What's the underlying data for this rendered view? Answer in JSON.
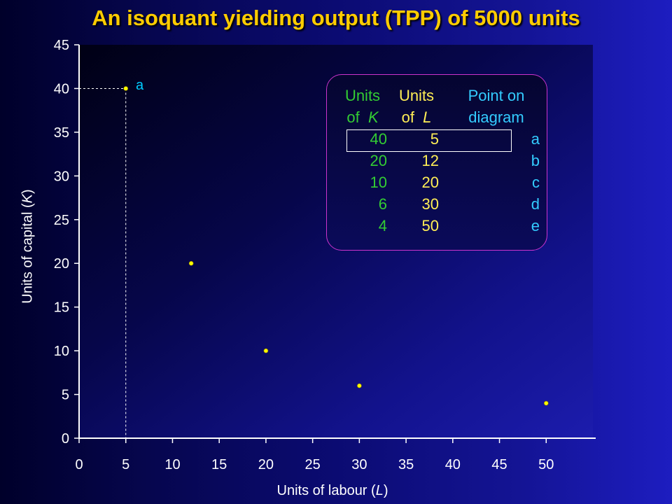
{
  "title": "An isoquant yielding output (TPP) of 5000 units",
  "chart_data": {
    "type": "scatter",
    "title": "An isoquant yielding output (TPP) of 5000 units",
    "xlabel_prefix": "Units of labour (",
    "xlabel_var": "L",
    "xlabel_suffix": ")",
    "ylabel_prefix": "Units of capital (",
    "ylabel_var": "K",
    "ylabel_suffix": ")",
    "xlim": [
      0,
      55
    ],
    "ylim": [
      0,
      45
    ],
    "xticks": [
      0,
      5,
      10,
      15,
      20,
      25,
      30,
      35,
      40,
      45,
      50
    ],
    "yticks": [
      0,
      5,
      10,
      15,
      20,
      25,
      30,
      35,
      40,
      45
    ],
    "points": [
      {
        "x": 5,
        "y": 40,
        "label": "a"
      },
      {
        "x": 12,
        "y": 20,
        "label": "b"
      },
      {
        "x": 20,
        "y": 10,
        "label": "c"
      },
      {
        "x": 30,
        "y": 6,
        "label": "d"
      },
      {
        "x": 50,
        "y": 4,
        "label": "e"
      }
    ],
    "annotated_point_label": "a",
    "guide_lines": {
      "x": 5,
      "y": 40
    },
    "point_color": "#ffff00",
    "guide_color": "#ffffff"
  },
  "table": {
    "headers": [
      {
        "line1": "Units",
        "line2": "of",
        "var": "K"
      },
      {
        "line1": "Units",
        "line2": "of",
        "var": "L"
      },
      {
        "line1": "Point on",
        "line2": "diagram",
        "var": ""
      }
    ],
    "rows": [
      {
        "k": "40",
        "l": "5",
        "p": "a"
      },
      {
        "k": "20",
        "l": "12",
        "p": "b"
      },
      {
        "k": "10",
        "l": "20",
        "p": "c"
      },
      {
        "k": "6",
        "l": "30",
        "p": "d"
      },
      {
        "k": "4",
        "l": "50",
        "p": "e"
      }
    ],
    "highlighted_row": 0,
    "colors": {
      "k": "#33cc33",
      "l": "#ffee55",
      "p": "#33ccff",
      "border": "#cc33cc"
    }
  }
}
